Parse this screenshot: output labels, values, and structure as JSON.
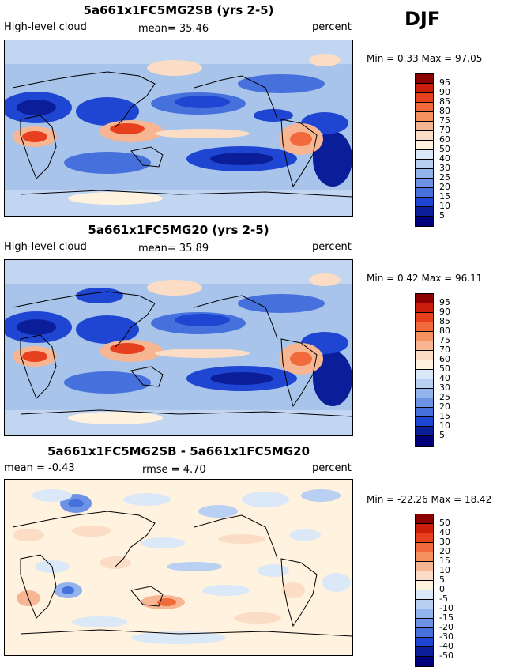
{
  "season": "DJF",
  "panels": [
    {
      "title": "5a661x1FC5MG2SB (yrs 2-5)",
      "left_label": "High-level cloud",
      "center_label": "mean=  35.46",
      "right_label": "percent",
      "minmax": "Min =   0.33  Max =  97.05",
      "colorbar_labels": [
        "95",
        "90",
        "85",
        "80",
        "75",
        "70",
        "60",
        "50",
        "40",
        "30",
        "25",
        "20",
        "15",
        "10",
        "5"
      ]
    },
    {
      "title": "5a661x1FC5MG20 (yrs 2-5)",
      "left_label": "High-level cloud",
      "center_label": "mean=  35.89",
      "right_label": "percent",
      "minmax": "Min =   0.42  Max =  96.11",
      "colorbar_labels": [
        "95",
        "90",
        "85",
        "80",
        "75",
        "70",
        "60",
        "50",
        "40",
        "30",
        "25",
        "20",
        "15",
        "10",
        "5"
      ]
    },
    {
      "title": "5a661x1FC5MG2SB - 5a661x1FC5MG20",
      "left_label": "mean =  -0.43",
      "center_label": "rmse =   4.70",
      "right_label": "percent",
      "minmax": "Min = -22.26  Max =  18.42",
      "colorbar_labels": [
        "50",
        "40",
        "30",
        "20",
        "15",
        "10",
        "5",
        "0",
        "-5",
        "-10",
        "-15",
        "-20",
        "-30",
        "-40",
        "-50"
      ]
    }
  ],
  "colorbar_colors": [
    "#8b0000",
    "#c81e0a",
    "#e6401e",
    "#f06a3c",
    "#f5915f",
    "#f8b592",
    "#fbdcc4",
    "#fff2df",
    "#dbe8f8",
    "#b9d0f2",
    "#93b3ec",
    "#6e93e6",
    "#4670dc",
    "#1e46d2",
    "#0a1e9a",
    "#00007a"
  ]
}
